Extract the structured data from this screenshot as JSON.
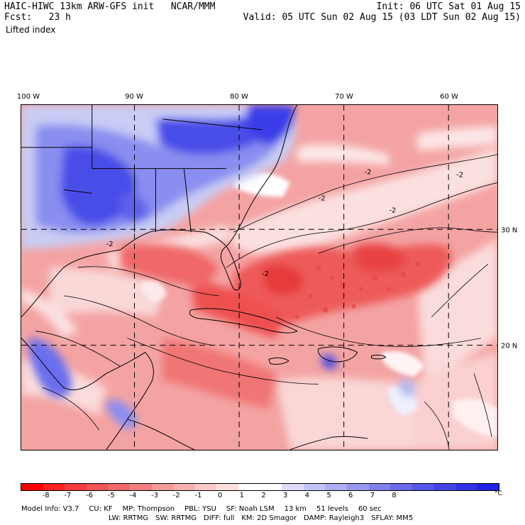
{
  "header": {
    "model": "HAIC-HIWC 13km ARW-GFS init",
    "center": "NCAR/MMM",
    "fcst_label": "Fcst:",
    "fcst_value": "23 h",
    "field": "Lifted index",
    "init": "Init: 06 UTC Sat 01 Aug 15",
    "valid": "Valid: 05 UTC Sun 02 Aug 15 (03 LDT Sun 02 Aug 15)"
  },
  "map": {
    "lon_labels": [
      "100 W",
      "90 W",
      "80 W",
      "70 W",
      "60 W"
    ],
    "lat_labels": [
      "30 N",
      "20 N"
    ],
    "contour_label": "-2",
    "colors": {
      "ocean_base": "#f4a3a3",
      "deep_red": "#e84444",
      "mid_red": "#f07070",
      "light_pink": "#fad2d2",
      "pale": "#fbe6e6",
      "white": "#ffffff",
      "light_blue": "#c4c8f4",
      "mid_blue": "#8a8ef0",
      "blue": "#5a5ef0",
      "deep_blue": "#3a3ee8"
    }
  },
  "colorbar": {
    "labels": [
      "-8",
      "-7",
      "-6",
      "-5",
      "-4",
      "-3",
      "-2",
      "-1",
      "0",
      "1",
      "2",
      "3",
      "4",
      "5",
      "6",
      "7",
      "8"
    ],
    "unit": "°C",
    "colors": [
      "#ff0000",
      "#ff2222",
      "#f63c3c",
      "#f25454",
      "#f06a6a",
      "#f28080",
      "#f49898",
      "#f7b0b0",
      "#f9c8c8",
      "#fcdede",
      "#ffffff",
      "#ffffff",
      "#dcdcfa",
      "#c4c4f6",
      "#aeaef2",
      "#9898ee",
      "#8080ec",
      "#6a6aea",
      "#5656e8",
      "#4444e6",
      "#3232e6",
      "#2020e6"
    ]
  },
  "footer": {
    "line1": [
      "Model Info: V3.7",
      "CU: KF",
      "MP: Thompson",
      "PBL: YSU",
      "SF: Noah LSM",
      "13 km",
      "51 levels",
      "60 sec"
    ],
    "line2": [
      "LW: RRTMG",
      "SW: RRTMG",
      "DIFF: full",
      "KM: 2D Smagor",
      "DAMP: Rayleigh3",
      "SFLAY: MM5"
    ]
  }
}
